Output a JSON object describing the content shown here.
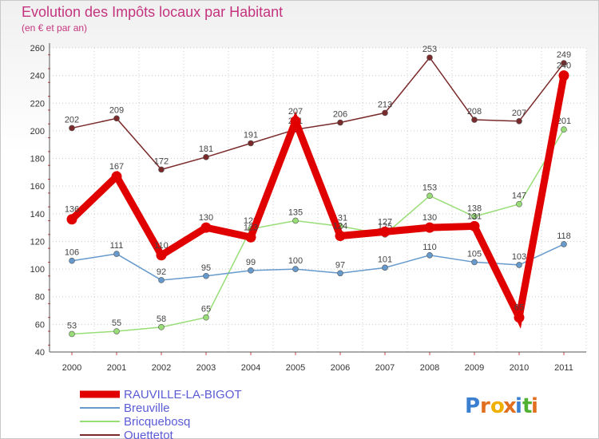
{
  "chart_data": {
    "type": "line",
    "title": "Evolution des Impôts locaux par Habitant",
    "subtitle": "(en € et par an)",
    "xlabel": "",
    "ylabel": "",
    "categories": [
      "2000",
      "2001",
      "2002",
      "2003",
      "2004",
      "2005",
      "2006",
      "2007",
      "2008",
      "2009",
      "2010",
      "2011"
    ],
    "ylim": [
      40,
      260
    ],
    "yticks": [
      40,
      60,
      80,
      100,
      120,
      140,
      160,
      180,
      200,
      220,
      240,
      260
    ],
    "grid": true,
    "legend_position": "bottom-left",
    "series": [
      {
        "name": "RAUVILLE-LA-BIGOT",
        "color": "#e00000",
        "values": [
          136,
          167,
          110,
          130,
          123,
          207,
          124,
          127,
          130,
          131,
          65,
          240
        ],
        "labels": [
          "136",
          "167",
          "110",
          "130",
          "123",
          "207",
          "124",
          "127",
          "130",
          "131",
          "65",
          "240"
        ]
      },
      {
        "name": "Breuville",
        "color": "#6699cc",
        "values": [
          106,
          111,
          92,
          95,
          99,
          100,
          97,
          101,
          110,
          105,
          103,
          118
        ],
        "labels": [
          "106",
          "111",
          "92",
          "95",
          "99",
          "100",
          "97",
          "101",
          "110",
          "105",
          "103",
          "118"
        ]
      },
      {
        "name": "Bricquebosq",
        "color": "#99dd77",
        "values": [
          53,
          55,
          58,
          65,
          129,
          135,
          131,
          125,
          153,
          138,
          147,
          201
        ],
        "labels": [
          "53",
          "55",
          "58",
          "65",
          "129",
          "135",
          "131",
          "125",
          "153",
          "138",
          "147",
          "201"
        ]
      },
      {
        "name": "Quettetot",
        "color": "#7a2a2a",
        "values": [
          202,
          209,
          172,
          181,
          191,
          201,
          206,
          213,
          253,
          208,
          207,
          249
        ],
        "labels": [
          "202",
          "209",
          "172",
          "181",
          "191",
          "201",
          "206",
          "213",
          "253",
          "208",
          "207",
          "249"
        ]
      }
    ]
  },
  "logo": {
    "letters": [
      "P",
      "r",
      "o",
      "x",
      "i",
      "t",
      "i"
    ],
    "colors": [
      "#3a7fd0",
      "#e07020",
      "#f0b000",
      "#e07020",
      "#3a7fd0",
      "#50b030",
      "#e07020"
    ]
  }
}
